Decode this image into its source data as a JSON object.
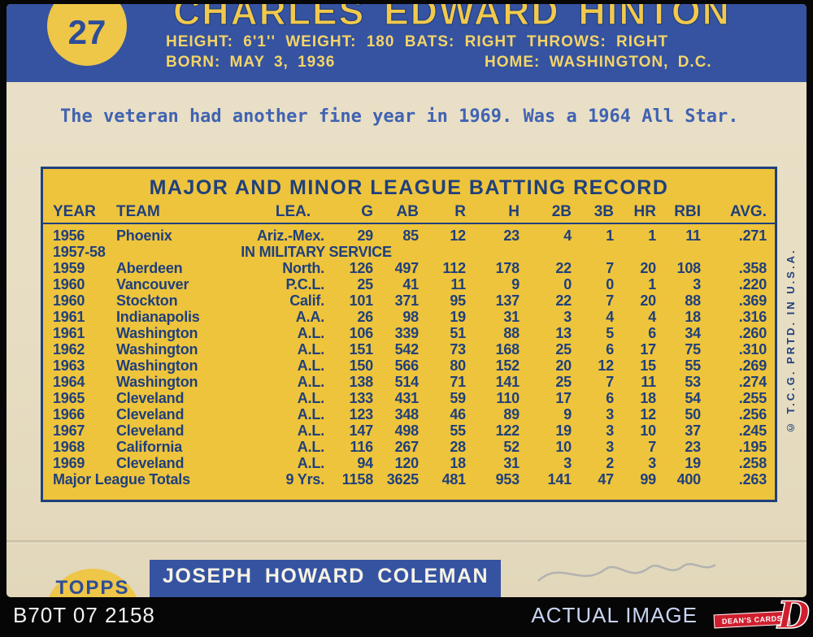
{
  "card": {
    "number": "27",
    "player_name": "CHARLES EDWARD HINTON",
    "bio_line1": "HEIGHT: 6'1'' WEIGHT: 180 BATS: RIGHT THROWS: RIGHT",
    "born": "BORN: MAY 3, 1936",
    "home": "HOME: WASHINGTON, D.C.",
    "blurb": "The veteran had another fine year in 1969. Was a 1964 All Star.",
    "copyright": "© T.C.G. PRTD. IN U.S.A."
  },
  "stats": {
    "title": "MAJOR AND MINOR LEAGUE BATTING RECORD",
    "columns": [
      "YEAR",
      "TEAM",
      "LEA.",
      "G",
      "AB",
      "R",
      "H",
      "2B",
      "3B",
      "HR",
      "RBI",
      "AVG."
    ],
    "rows": [
      [
        "1956",
        "Phoenix",
        "Ariz.-Mex.",
        "29",
        "85",
        "12",
        "23",
        "4",
        "1",
        "1",
        "11",
        ".271"
      ],
      [
        "1957-58",
        "IN MILITARY SERVICE"
      ],
      [
        "1959",
        "Aberdeen",
        "North.",
        "126",
        "497",
        "112",
        "178",
        "22",
        "7",
        "20",
        "108",
        ".358"
      ],
      [
        "1960",
        "Vancouver",
        "P.C.L.",
        "25",
        "41",
        "11",
        "9",
        "0",
        "0",
        "1",
        "3",
        ".220"
      ],
      [
        "1960",
        "Stockton",
        "Calif.",
        "101",
        "371",
        "95",
        "137",
        "22",
        "7",
        "20",
        "88",
        ".369"
      ],
      [
        "1961",
        "Indianapolis",
        "A.A.",
        "26",
        "98",
        "19",
        "31",
        "3",
        "4",
        "4",
        "18",
        ".316"
      ],
      [
        "1961",
        "Washington",
        "A.L.",
        "106",
        "339",
        "51",
        "88",
        "13",
        "5",
        "6",
        "34",
        ".260"
      ],
      [
        "1962",
        "Washington",
        "A.L.",
        "151",
        "542",
        "73",
        "168",
        "25",
        "6",
        "17",
        "75",
        ".310"
      ],
      [
        "1963",
        "Washington",
        "A.L.",
        "150",
        "566",
        "80",
        "152",
        "20",
        "12",
        "15",
        "55",
        ".269"
      ],
      [
        "1964",
        "Washington",
        "A.L.",
        "138",
        "514",
        "71",
        "141",
        "25",
        "7",
        "11",
        "53",
        ".274"
      ],
      [
        "1965",
        "Cleveland",
        "A.L.",
        "133",
        "431",
        "59",
        "110",
        "17",
        "6",
        "18",
        "54",
        ".255"
      ],
      [
        "1966",
        "Cleveland",
        "A.L.",
        "123",
        "348",
        "46",
        "89",
        "9",
        "3",
        "12",
        "50",
        ".256"
      ],
      [
        "1967",
        "Cleveland",
        "A.L.",
        "147",
        "498",
        "55",
        "122",
        "19",
        "3",
        "10",
        "37",
        ".245"
      ],
      [
        "1968",
        "California",
        "A.L.",
        "116",
        "267",
        "28",
        "52",
        "10",
        "3",
        "7",
        "23",
        ".195"
      ],
      [
        "1969",
        "Cleveland",
        "A.L.",
        "94",
        "120",
        "18",
        "31",
        "3",
        "2",
        "3",
        "19",
        ".258"
      ]
    ],
    "totals": {
      "label": "Major League Totals",
      "years": "9 Yrs.",
      "values": [
        "1158",
        "3625",
        "481",
        "953",
        "141",
        "47",
        "99",
        "400",
        ".263"
      ]
    }
  },
  "next_card": {
    "logo": "TOPPS",
    "player_name": "JOSEPH HOWARD COLEMAN"
  },
  "footer": {
    "code": "B70T 07 2158",
    "caption": "ACTUAL IMAGE",
    "brand": "DEAN'S CARDS"
  },
  "colors": {
    "band_blue": "#3553a1",
    "card_cream": "#e7ddc2",
    "stat_yellow": "#eec43c",
    "ink_navy": "#20407c",
    "brand_red": "#cf1f2e"
  }
}
